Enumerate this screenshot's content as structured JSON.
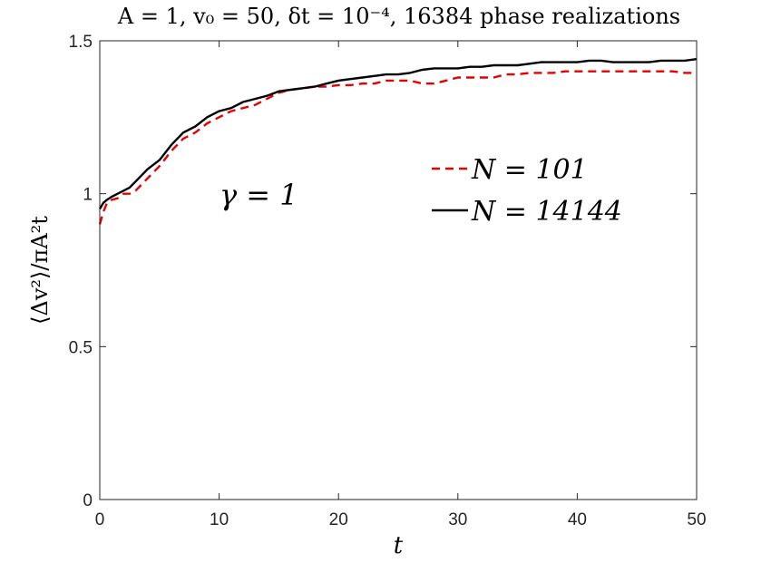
{
  "chart_data": {
    "type": "line",
    "title": "A = 1, v₀ = 50, δt = 10⁻⁴, 16384 phase realizations",
    "xlabel": "t",
    "ylabel": "⟨Δv²⟩/πA²t",
    "xlim": [
      0,
      50
    ],
    "ylim": [
      0,
      1.5
    ],
    "xticks": [
      0,
      10,
      20,
      30,
      40,
      50
    ],
    "xtick_labels": [
      "0",
      "10",
      "20",
      "30",
      "40",
      "50"
    ],
    "yticks": [
      0,
      0.5,
      1,
      1.5
    ],
    "ytick_labels": [
      "0",
      "0.5",
      "1",
      "1.5"
    ],
    "grid": false,
    "legend_position": "upper-right",
    "annotation": "γ = 1",
    "series": [
      {
        "name": "N = 101",
        "color": "#e60000",
        "dash": "dashed",
        "x": [
          0,
          0.3,
          0.6,
          1,
          1.5,
          2,
          2.5,
          3,
          3.5,
          4,
          5,
          6,
          7,
          8,
          9,
          10,
          11,
          12,
          13,
          14,
          15,
          16,
          17,
          18,
          19,
          20,
          21,
          22,
          23,
          24,
          25,
          26,
          27,
          28,
          29,
          30,
          31,
          32,
          33,
          34,
          35,
          36,
          37,
          38,
          39,
          40,
          41,
          42,
          43,
          44,
          45,
          46,
          47,
          48,
          49,
          50
        ],
        "y": [
          0.9,
          0.94,
          0.97,
          0.98,
          0.985,
          1.0,
          1.0,
          1.01,
          1.03,
          1.05,
          1.09,
          1.14,
          1.18,
          1.2,
          1.23,
          1.25,
          1.27,
          1.28,
          1.29,
          1.31,
          1.33,
          1.34,
          1.345,
          1.35,
          1.35,
          1.355,
          1.355,
          1.36,
          1.36,
          1.37,
          1.37,
          1.37,
          1.36,
          1.36,
          1.37,
          1.38,
          1.38,
          1.38,
          1.38,
          1.39,
          1.39,
          1.395,
          1.395,
          1.395,
          1.4,
          1.4,
          1.4,
          1.4,
          1.4,
          1.4,
          1.4,
          1.4,
          1.4,
          1.4,
          1.395,
          1.395
        ]
      },
      {
        "name": "N = 14144",
        "color": "#000000",
        "dash": "solid",
        "x": [
          0,
          0.3,
          0.6,
          1,
          1.5,
          2,
          2.5,
          3,
          3.5,
          4,
          5,
          6,
          7,
          8,
          9,
          10,
          11,
          12,
          13,
          14,
          15,
          16,
          17,
          18,
          19,
          20,
          21,
          22,
          23,
          24,
          25,
          26,
          27,
          28,
          29,
          30,
          31,
          32,
          33,
          34,
          35,
          36,
          37,
          38,
          39,
          40,
          41,
          42,
          43,
          44,
          45,
          46,
          47,
          48,
          49,
          50
        ],
        "y": [
          0.95,
          0.97,
          0.98,
          0.99,
          1.0,
          1.01,
          1.02,
          1.04,
          1.06,
          1.08,
          1.11,
          1.16,
          1.2,
          1.22,
          1.25,
          1.27,
          1.28,
          1.3,
          1.31,
          1.32,
          1.335,
          1.34,
          1.345,
          1.35,
          1.36,
          1.37,
          1.375,
          1.38,
          1.385,
          1.39,
          1.39,
          1.395,
          1.405,
          1.41,
          1.41,
          1.41,
          1.415,
          1.415,
          1.42,
          1.42,
          1.42,
          1.425,
          1.43,
          1.43,
          1.43,
          1.43,
          1.435,
          1.435,
          1.43,
          1.43,
          1.43,
          1.43,
          1.435,
          1.435,
          1.435,
          1.44
        ]
      }
    ]
  }
}
